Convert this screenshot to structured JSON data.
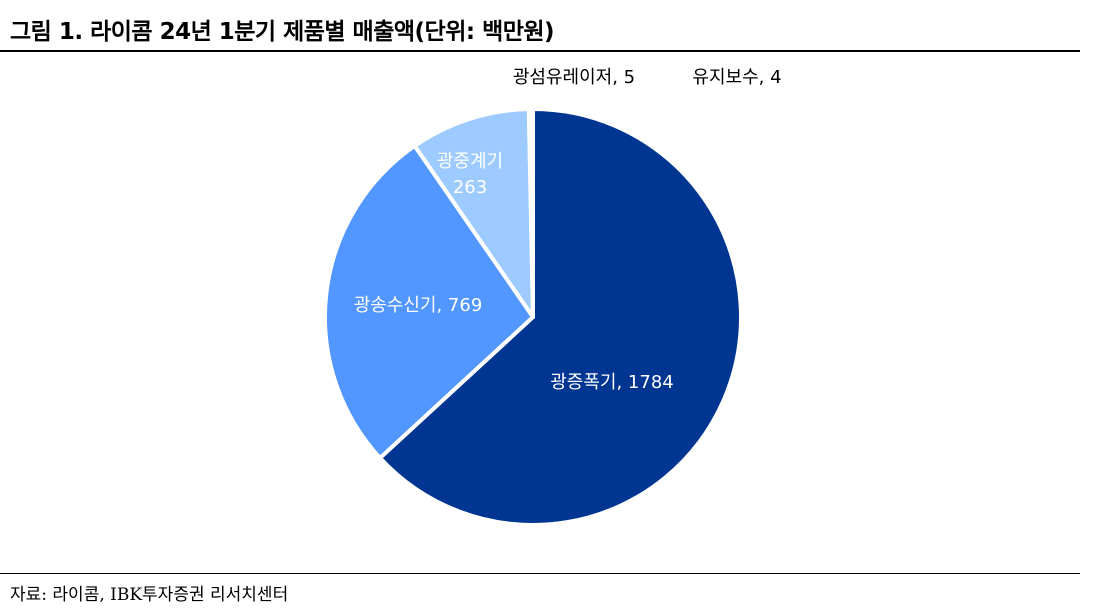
{
  "title": "그림 1. 라이콤 24년 1분기 제품별 매출액(단위: 백만원)",
  "source": "자료: 라이콤, IBK투자증권 리서치센터",
  "chart_data": {
    "type": "pie",
    "title": "그림 1. 라이콤 24년 1분기 제품별 매출액(단위: 백만원)",
    "unit": "백만원",
    "slices": [
      {
        "label": "광증폭기",
        "value": 1784,
        "display": "광증폭기, 1784",
        "color": "#003591"
      },
      {
        "label": "광송수신기",
        "value": 769,
        "display": "광송수신기, 769",
        "color": "#5296FF"
      },
      {
        "label": "광중계기",
        "value": 263,
        "display": "광중계기\n263",
        "color": "#9ECBFF"
      },
      {
        "label": "광섬유레이저",
        "value": 5,
        "display": "광섬유레이저, 5",
        "color": "#C8C8C8"
      },
      {
        "label": "유지보수",
        "value": 4,
        "display": "유지보수, 4",
        "color": "#A0A0A0"
      }
    ]
  }
}
